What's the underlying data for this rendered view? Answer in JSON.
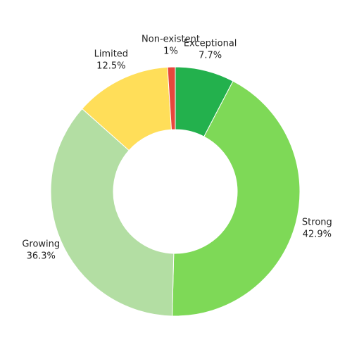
{
  "chart_data": {
    "type": "donut",
    "categories": [
      "Exceptional",
      "Strong",
      "Growing",
      "Limited",
      "Non-existent"
    ],
    "values": [
      7.7,
      42.9,
      36.3,
      12.5,
      1
    ],
    "value_labels": [
      "7.7%",
      "42.9%",
      "36.3%",
      "12.5%",
      "1%"
    ],
    "colors": [
      "#23b14d",
      "#7ed957",
      "#b3dea3",
      "#ffde59",
      "#e8463c"
    ]
  }
}
